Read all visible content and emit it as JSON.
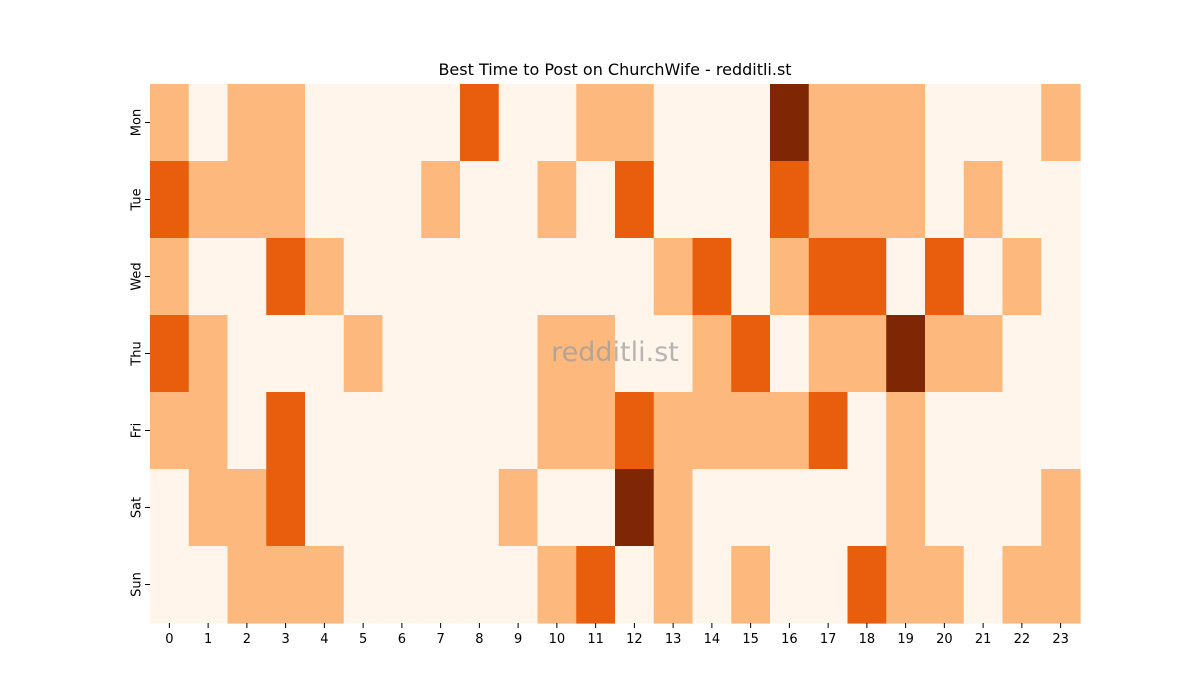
{
  "chart_data": {
    "type": "heatmap",
    "title": "Best Time to Post on ChurchWife - redditli.st",
    "xlabel": "",
    "ylabel": "",
    "x_categories": [
      "0",
      "1",
      "2",
      "3",
      "4",
      "5",
      "6",
      "7",
      "8",
      "9",
      "10",
      "11",
      "12",
      "13",
      "14",
      "15",
      "16",
      "17",
      "18",
      "19",
      "20",
      "21",
      "22",
      "23"
    ],
    "y_categories": [
      "Mon",
      "Tue",
      "Wed",
      "Thu",
      "Fri",
      "Sat",
      "Sun"
    ],
    "values": [
      [
        1,
        0,
        1,
        1,
        0,
        0,
        0,
        0,
        2,
        0,
        0,
        1,
        1,
        0,
        0,
        0,
        3,
        1,
        1,
        1,
        0,
        0,
        0,
        1
      ],
      [
        2,
        1,
        1,
        1,
        0,
        0,
        0,
        1,
        0,
        0,
        1,
        0,
        2,
        0,
        0,
        0,
        2,
        1,
        1,
        1,
        0,
        1,
        0,
        0
      ],
      [
        1,
        0,
        0,
        2,
        1,
        0,
        0,
        0,
        0,
        0,
        0,
        0,
        0,
        1,
        2,
        0,
        1,
        2,
        2,
        0,
        2,
        0,
        1,
        0
      ],
      [
        2,
        1,
        0,
        0,
        0,
        1,
        0,
        0,
        0,
        0,
        1,
        1,
        0,
        0,
        1,
        2,
        0,
        1,
        1,
        3,
        1,
        1,
        0,
        0
      ],
      [
        1,
        1,
        0,
        2,
        0,
        0,
        0,
        0,
        0,
        0,
        1,
        1,
        2,
        1,
        1,
        1,
        1,
        2,
        0,
        1,
        0,
        0,
        0,
        0
      ],
      [
        0,
        1,
        1,
        2,
        0,
        0,
        0,
        0,
        0,
        1,
        0,
        0,
        3,
        1,
        0,
        0,
        0,
        0,
        0,
        1,
        0,
        0,
        0,
        1
      ],
      [
        0,
        0,
        1,
        1,
        1,
        0,
        0,
        0,
        0,
        0,
        1,
        2,
        0,
        1,
        0,
        1,
        0,
        0,
        2,
        1,
        1,
        0,
        1,
        1
      ]
    ],
    "value_range": [
      0,
      3
    ],
    "colormap": "Oranges",
    "level_colors": [
      "#fff5eb",
      "#fdb97d",
      "#e95e0d",
      "#7f2704"
    ],
    "watermark": "redditli.st",
    "grid": false
  }
}
